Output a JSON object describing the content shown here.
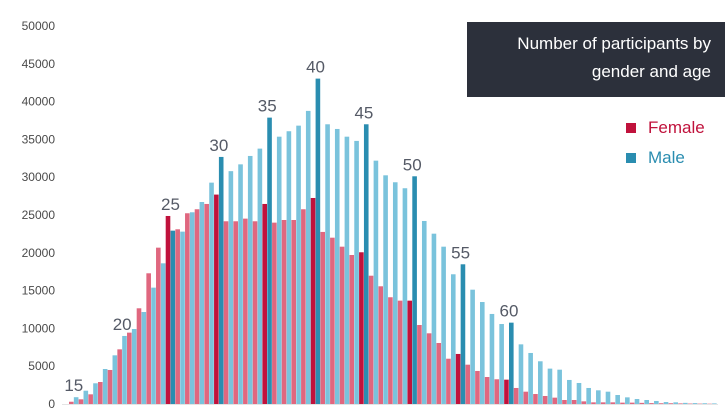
{
  "chart_data": {
    "type": "bar",
    "title": "Number of participants by gender and age",
    "title_lines": [
      "Number of participants by",
      "gender and age"
    ],
    "xlabel": "",
    "ylabel": "",
    "ylim": [
      0,
      50000
    ],
    "yticks": [
      0,
      5000,
      10000,
      15000,
      20000,
      25000,
      30000,
      35000,
      40000,
      45000,
      50000
    ],
    "labeled_ages": [
      15,
      20,
      25,
      30,
      35,
      40,
      45,
      50,
      55,
      60
    ],
    "highlighted_ages": [
      25,
      30,
      35,
      40,
      45,
      50,
      55,
      60
    ],
    "legend_position": "top-right",
    "x": [
      15,
      16,
      17,
      18,
      19,
      20,
      21,
      22,
      23,
      24,
      25,
      26,
      27,
      28,
      29,
      30,
      31,
      32,
      33,
      34,
      35,
      36,
      37,
      38,
      39,
      40,
      41,
      42,
      43,
      44,
      45,
      46,
      47,
      48,
      49,
      50,
      51,
      52,
      53,
      54,
      55,
      56,
      57,
      58,
      59,
      60,
      61,
      62,
      63,
      64,
      65,
      66,
      67,
      68,
      69,
      70,
      71,
      72,
      73,
      74,
      75,
      76,
      77,
      78,
      79,
      80,
      81
    ],
    "series": [
      {
        "name": "Female",
        "color": "#e0677f",
        "highlight_color": "#c0123c",
        "values": [
          300,
          620,
          1280,
          2910,
          4500,
          7230,
          9440,
          12660,
          17290,
          20680,
          24870,
          23110,
          25230,
          25760,
          26460,
          27700,
          24170,
          24170,
          24520,
          24170,
          26460,
          23990,
          24340,
          24340,
          25760,
          27250,
          22760,
          22000,
          20810,
          19710,
          20070,
          16970,
          15570,
          14120,
          13670,
          13670,
          10450,
          9350,
          8070,
          5990,
          6620,
          5200,
          4370,
          3570,
          3270,
          3220,
          2120,
          1630,
          1320,
          1060,
          840,
          530,
          530,
          350,
          220,
          220,
          220,
          180,
          180,
          150,
          120,
          100,
          100,
          80,
          60,
          50,
          40
        ]
      },
      {
        "name": "Male",
        "color": "#7ac3dc",
        "highlight_color": "#2a8db0",
        "values": [
          900,
          1760,
          2740,
          4630,
          6440,
          9000,
          9920,
          12170,
          15390,
          18610,
          22930,
          22800,
          25360,
          26720,
          29280,
          32680,
          30800,
          31700,
          32810,
          33780,
          37880,
          35360,
          36080,
          36820,
          38770,
          43040,
          37000,
          36380,
          35360,
          34800,
          37000,
          32190,
          30250,
          29330,
          28540,
          30120,
          24210,
          22530,
          20810,
          17160,
          18480,
          15120,
          13490,
          11910,
          10580,
          10760,
          7890,
          6750,
          5650,
          4680,
          4540,
          3180,
          2780,
          2120,
          1810,
          1630,
          1190,
          880,
          660,
          530,
          400,
          260,
          220,
          150,
          120,
          100,
          80
        ]
      }
    ]
  }
}
